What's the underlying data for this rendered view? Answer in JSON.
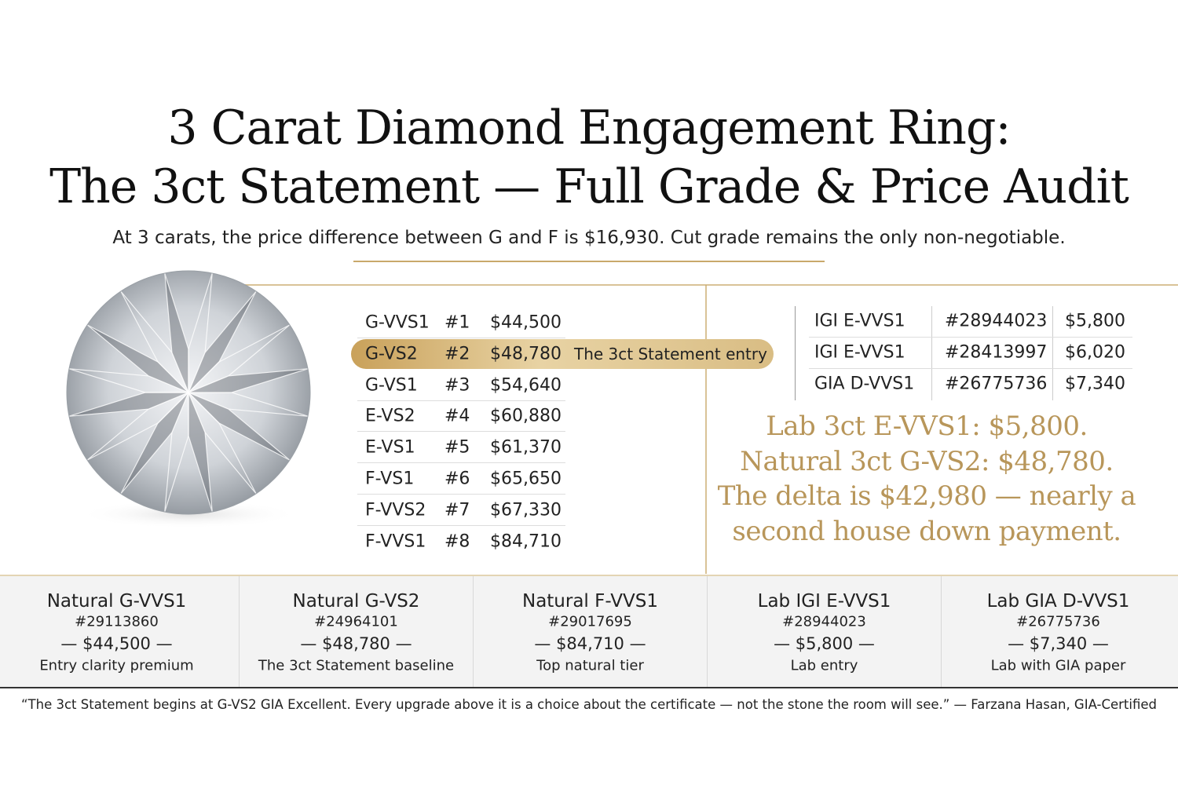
{
  "header": {
    "title_lines": [
      "3 Carat Diamond Engagement Ring:",
      "The 3ct Statement — Full Grade & Price Audit"
    ],
    "subtitle": "At 3 carats, the price difference between G and F is $16,930. Cut grade remains the only non-negotiable."
  },
  "grade_table": {
    "rows": [
      [
        "G-VVS1",
        "#1",
        "$44,500"
      ],
      [
        "G-VS2",
        "#2",
        "$48,780",
        "The 3ct Statement entry"
      ],
      [
        "G-VS1",
        "#3",
        "$54,640"
      ],
      [
        "E-VS2",
        "#4",
        "$60,880"
      ],
      [
        "E-VS1",
        "#5",
        "$61,370"
      ],
      [
        "F-VS1",
        "#6",
        "$65,650"
      ],
      [
        "F-VVS2",
        "#7",
        "$67,330"
      ],
      [
        "F-VVS1",
        "#8",
        "$84,710"
      ]
    ]
  },
  "lab_table": {
    "rows": [
      [
        "IGI E-VVS1",
        "#28944023",
        "$5,800"
      ],
      [
        "IGI E-VVS1",
        "#28413997",
        "$6,020"
      ],
      [
        "GIA D-VVS1",
        "#26775736",
        "$7,340"
      ]
    ]
  },
  "callout": {
    "lines": [
      "Lab 3ct E-VVS1: $5,800.",
      "Natural 3ct G-VS2: $48,780.",
      "The delta is $42,980 — nearly a",
      "second house down payment."
    ]
  },
  "cards": [
    {
      "name": "Natural G-VVS1",
      "id": "#29113860",
      "price": "— $44,500 —",
      "note": "Entry clarity premium"
    },
    {
      "name": "Natural G-VS2",
      "id": "#24964101",
      "price": "— $48,780 —",
      "note": "The 3ct Statement baseline"
    },
    {
      "name": "Natural F-VVS1",
      "id": "#29017695",
      "price": "— $84,710 —",
      "note": "Top natural tier"
    },
    {
      "name": "Lab IGI E-VVS1",
      "id": "#28944023",
      "price": "— $5,800 —",
      "note": "Lab entry"
    },
    {
      "name": "Lab GIA D-VVS1",
      "id": "#26775736",
      "price": "— $7,340 —",
      "note": "Lab with GIA paper"
    }
  ],
  "quote": "“The 3ct Statement begins at G-VS2 GIA Excellent. Every upgrade above it is a choice about the certificate — not the stone the room will see.” — Farzana Hasan, GIA-Certified"
}
